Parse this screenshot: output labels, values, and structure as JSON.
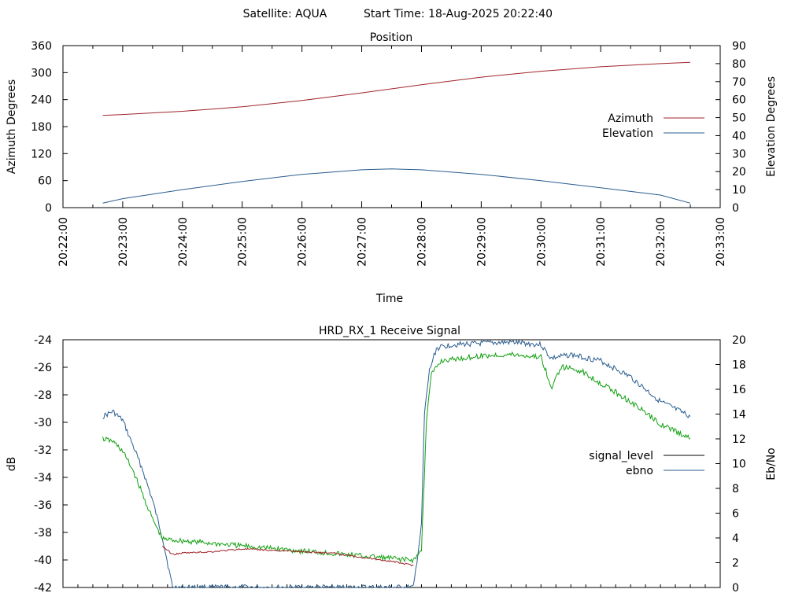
{
  "header": {
    "satellite_text": "Satellite: AQUA",
    "start_time_text": "Start Time: 18-Aug-2025 20:22:40"
  },
  "chart_data": [
    {
      "type": "line",
      "title": "Position",
      "xlabel": "Time",
      "ylabel": "Azimuth Degrees",
      "y2label": "Elevation Degrees",
      "xlim": [
        "20:22:00",
        "20:33:00"
      ],
      "x_ticks": [
        "20:22:00",
        "20:23:00",
        "20:24:00",
        "20:25:00",
        "20:26:00",
        "20:27:00",
        "20:28:00",
        "20:29:00",
        "20:30:00",
        "20:31:00",
        "20:32:00",
        "20:33:00"
      ],
      "ylim": [
        0,
        360
      ],
      "y_ticks": [
        0,
        60,
        120,
        180,
        240,
        300,
        360
      ],
      "y2lim": [
        0,
        90
      ],
      "y2_ticks": [
        0,
        10,
        20,
        30,
        40,
        50,
        60,
        70,
        80,
        90
      ],
      "grid": false,
      "legend_position": "right",
      "series": [
        {
          "name": "Azimuth",
          "axis": "y",
          "color": "#a0242a",
          "x": [
            "20:22:40",
            "20:23:00",
            "20:24:00",
            "20:25:00",
            "20:26:00",
            "20:27:00",
            "20:28:00",
            "20:29:00",
            "20:30:00",
            "20:31:00",
            "20:32:00",
            "20:32:30"
          ],
          "values": [
            205,
            207,
            214,
            224,
            238,
            255,
            273,
            290,
            303,
            313,
            320,
            323
          ]
        },
        {
          "name": "Elevation",
          "axis": "y2",
          "color": "#2a5d8f",
          "x": [
            "20:22:40",
            "20:23:00",
            "20:24:00",
            "20:25:00",
            "20:26:00",
            "20:27:00",
            "20:27:30",
            "20:28:00",
            "20:29:00",
            "20:30:00",
            "20:31:00",
            "20:32:00",
            "20:32:30"
          ],
          "values": [
            2.5,
            5,
            10,
            14.5,
            18.5,
            21,
            21.5,
            21,
            18.5,
            15,
            11,
            7,
            2.5
          ]
        }
      ]
    },
    {
      "type": "line",
      "title": "HRD_RX_1 Receive Signal",
      "xlabel": "",
      "ylabel": "dB",
      "y2label": "Eb/No",
      "ylim": [
        -42,
        -24
      ],
      "y_ticks": [
        -42,
        -40,
        -38,
        -36,
        -34,
        -32,
        -30,
        -28,
        -26,
        -24
      ],
      "y2lim": [
        0,
        20
      ],
      "y2_ticks": [
        0,
        2,
        4,
        6,
        8,
        10,
        12,
        14,
        16,
        18,
        20
      ],
      "grid": false,
      "legend_position": "right",
      "legend": [
        {
          "name": "signal_level",
          "color": "#000000"
        },
        {
          "name": "ebno",
          "color": "#2a5d8f"
        }
      ],
      "series": [
        {
          "name": "ebno",
          "axis": "y2",
          "color": "#2a5d8f",
          "x": [
            "20:22:40",
            "20:22:50",
            "20:23:00",
            "20:23:10",
            "20:23:20",
            "20:23:30",
            "20:23:40",
            "20:23:50",
            "20:27:30",
            "20:27:52",
            "20:28:00",
            "20:28:03",
            "20:28:08",
            "20:28:15",
            "20:28:30",
            "20:29:00",
            "20:29:30",
            "20:30:00",
            "20:30:10",
            "20:30:30",
            "20:31:00",
            "20:31:30",
            "20:32:00",
            "20:32:30"
          ],
          "values": [
            13.8,
            14.2,
            13.5,
            11.5,
            9.5,
            7,
            4,
            0,
            0,
            0,
            5,
            14,
            17.5,
            19.3,
            19.6,
            19.7,
            19.8,
            19.6,
            18.5,
            18.8,
            18.3,
            17,
            15,
            13.8
          ]
        },
        {
          "name": "",
          "axis": "y2",
          "color": "#10a010",
          "x": [
            "20:22:40",
            "20:22:50",
            "20:23:00",
            "20:23:10",
            "20:23:20",
            "20:23:30",
            "20:23:40",
            "20:27:52",
            "20:28:00",
            "20:28:05",
            "20:28:10",
            "20:28:20",
            "20:28:40",
            "20:29:00",
            "20:29:30",
            "20:30:00",
            "20:30:05",
            "20:30:10",
            "20:30:20",
            "20:30:40",
            "20:31:00",
            "20:31:30",
            "20:32:00",
            "20:32:30"
          ],
          "values": [
            12.0,
            11.8,
            11.0,
            9.5,
            7.5,
            5.5,
            3.9,
            2.2,
            3.0,
            13.5,
            17.2,
            18.3,
            18.5,
            18.7,
            18.8,
            18.6,
            17.5,
            16.0,
            17.8,
            17.5,
            16.5,
            15.0,
            13.2,
            12.0
          ]
        },
        {
          "name": "",
          "axis": "y",
          "color": "#a0242a",
          "x": [
            "20:23:40",
            "20:23:50",
            "20:24:00",
            "20:24:30",
            "20:25:00",
            "20:25:30",
            "20:26:00",
            "20:26:30",
            "20:27:00",
            "20:27:30",
            "20:27:52"
          ],
          "values": [
            -39.0,
            -39.6,
            -39.5,
            -39.4,
            -39.2,
            -39.3,
            -39.4,
            -39.5,
            -39.8,
            -40.1,
            -40.4
          ]
        }
      ]
    }
  ]
}
